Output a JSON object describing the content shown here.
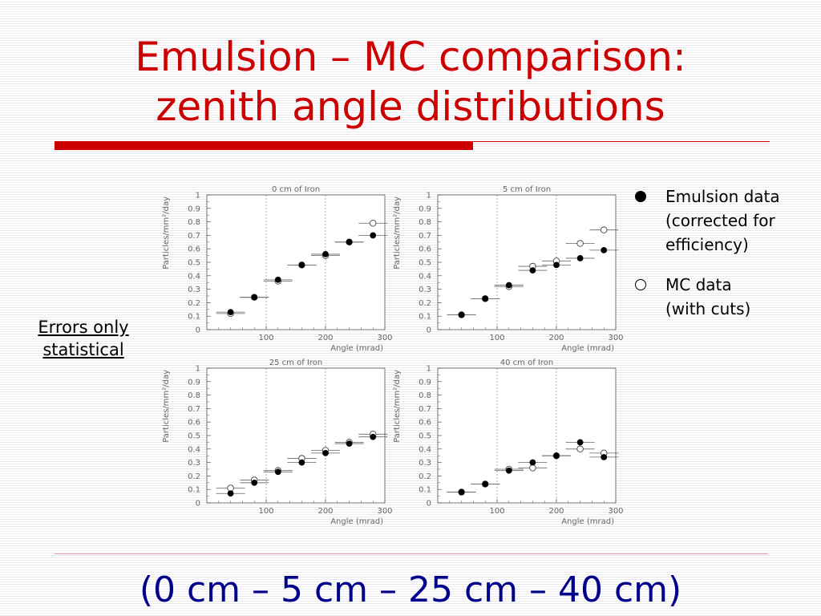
{
  "slide": {
    "title_line1": "Emulsion – MC comparison:",
    "title_line2": "zenith angle distributions",
    "errors_note_line1": "Errors only",
    "errors_note_line2": "statistical",
    "legend": [
      {
        "marker": "filled-circle",
        "lines": [
          "Emulsion data",
          "(corrected for",
          "efficiency)"
        ]
      },
      {
        "marker": "open-circle",
        "lines": [
          "MC data",
          "(with cuts)"
        ]
      }
    ],
    "footer": "(0 cm – 5 cm – 25 cm – 40 cm)",
    "colors": {
      "title": "#cc0000",
      "footer": "#00008b",
      "accent_bar": "#cc0000"
    }
  },
  "chart_data": [
    {
      "type": "scatter",
      "title": "0 cm of Iron",
      "xlabel": "Angle (mrad)",
      "ylabel": "Particles/mm²/day",
      "xlim": [
        0,
        300
      ],
      "ylim": [
        0,
        1
      ],
      "xticks": [
        "100",
        "200",
        "300"
      ],
      "yticks": [
        "0",
        "0.1",
        "0.2",
        "0.3",
        "0.4",
        "0.5",
        "0.6",
        "0.7",
        "0.8",
        "0.9",
        "1"
      ],
      "x": [
        40,
        80,
        120,
        160,
        200,
        240,
        280
      ],
      "series": [
        {
          "name": "Emulsion data",
          "marker": "filled",
          "values": [
            0.13,
            0.24,
            0.37,
            0.48,
            0.56,
            0.65,
            0.7
          ]
        },
        {
          "name": "MC data",
          "marker": "open",
          "values": [
            0.12,
            0.24,
            0.36,
            0.48,
            0.55,
            0.65,
            0.79
          ]
        }
      ]
    },
    {
      "type": "scatter",
      "title": "5 cm of Iron",
      "xlabel": "Angle (mrad)",
      "ylabel": "Particles/mm²/day",
      "xlim": [
        0,
        300
      ],
      "ylim": [
        0,
        1
      ],
      "xticks": [
        "100",
        "200",
        "300"
      ],
      "yticks": [
        "0",
        "0.1",
        "0.2",
        "0.3",
        "0.4",
        "0.5",
        "0.6",
        "0.7",
        "0.8",
        "0.9",
        "1"
      ],
      "x": [
        40,
        80,
        120,
        160,
        200,
        240,
        280
      ],
      "series": [
        {
          "name": "Emulsion data",
          "marker": "filled",
          "values": [
            0.11,
            0.23,
            0.33,
            0.44,
            0.48,
            0.53,
            0.59
          ]
        },
        {
          "name": "MC data",
          "marker": "open",
          "values": [
            0.11,
            0.23,
            0.32,
            0.47,
            0.51,
            0.64,
            0.74
          ]
        }
      ]
    },
    {
      "type": "scatter",
      "title": "25 cm of Iron",
      "xlabel": "Angle (mrad)",
      "ylabel": "Particles/mm²/day",
      "xlim": [
        0,
        300
      ],
      "ylim": [
        0,
        1
      ],
      "xticks": [
        "100",
        "200",
        "300"
      ],
      "yticks": [
        "0",
        "0.1",
        "0.2",
        "0.3",
        "0.4",
        "0.5",
        "0.6",
        "0.7",
        "0.8",
        "0.9",
        "1"
      ],
      "x": [
        40,
        80,
        120,
        160,
        200,
        240,
        280
      ],
      "series": [
        {
          "name": "Emulsion data",
          "marker": "filled",
          "values": [
            0.07,
            0.15,
            0.23,
            0.3,
            0.37,
            0.44,
            0.49
          ]
        },
        {
          "name": "MC data",
          "marker": "open",
          "values": [
            0.11,
            0.17,
            0.24,
            0.33,
            0.39,
            0.45,
            0.51
          ]
        }
      ]
    },
    {
      "type": "scatter",
      "title": "40 cm of Iron",
      "xlabel": "Angle (mrad)",
      "ylabel": "Particles/mm²/day",
      "xlim": [
        0,
        300
      ],
      "ylim": [
        0,
        1
      ],
      "xticks": [
        "100",
        "200",
        "300"
      ],
      "yticks": [
        "0",
        "0.1",
        "0.2",
        "0.3",
        "0.4",
        "0.5",
        "0.6",
        "0.7",
        "0.8",
        "0.9",
        "1"
      ],
      "x": [
        40,
        80,
        120,
        160,
        200,
        240,
        280
      ],
      "series": [
        {
          "name": "Emulsion data",
          "marker": "filled",
          "values": [
            0.08,
            0.14,
            0.24,
            0.3,
            0.35,
            0.45,
            0.34
          ]
        },
        {
          "name": "MC data",
          "marker": "open",
          "values": [
            0.08,
            0.14,
            0.25,
            0.26,
            0.35,
            0.4,
            0.37
          ]
        }
      ]
    }
  ]
}
